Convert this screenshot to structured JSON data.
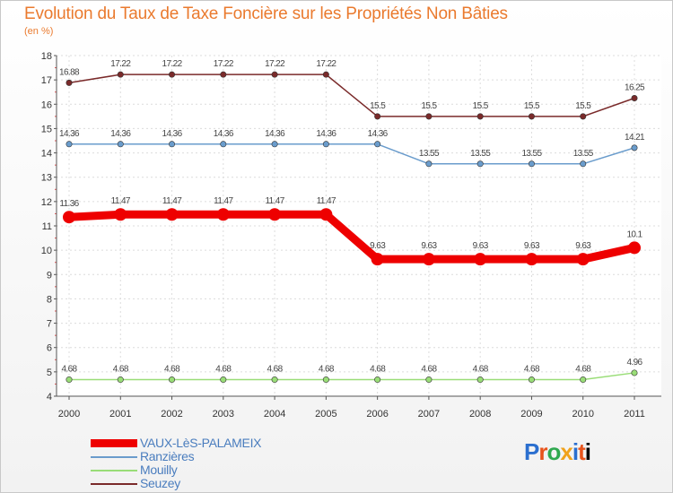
{
  "chart_data": {
    "type": "line",
    "title": "Evolution du Taux de Taxe Foncière sur les Propriétés Non Bâties",
    "ylabel": "(en %)",
    "xlabel": "",
    "ylim": [
      4,
      18
    ],
    "yticks": [
      4,
      5,
      6,
      7,
      8,
      9,
      10,
      11,
      12,
      13,
      14,
      15,
      16,
      17,
      18
    ],
    "categories": [
      "2000",
      "2001",
      "2002",
      "2003",
      "2004",
      "2005",
      "2006",
      "2007",
      "2008",
      "2009",
      "2010",
      "2011"
    ],
    "series": [
      {
        "name": "Seuzey",
        "color": "#7a2a2a",
        "values": [
          16.88,
          17.22,
          17.22,
          17.22,
          17.22,
          17.22,
          15.5,
          15.5,
          15.5,
          15.5,
          15.5,
          16.25
        ],
        "labels": [
          "16.88",
          "17.22",
          "17.22",
          "17.22",
          "17.22",
          "17.22",
          "15.5",
          "15.5",
          "15.5",
          "15.5",
          "15.5",
          "16.25"
        ]
      },
      {
        "name": "Ranzières",
        "color": "#6a9ccc",
        "values": [
          14.36,
          14.36,
          14.36,
          14.36,
          14.36,
          14.36,
          14.36,
          13.55,
          13.55,
          13.55,
          13.55,
          14.21
        ],
        "labels": [
          "14.36",
          "14.36",
          "14.36",
          "14.36",
          "14.36",
          "14.36",
          "14.36",
          "13.55",
          "13.55",
          "13.55",
          "13.55",
          "14.21"
        ]
      },
      {
        "name": "VAUX-LèS-PALAMEIX",
        "color": "#ee0000",
        "values": [
          11.36,
          11.47,
          11.47,
          11.47,
          11.47,
          11.47,
          9.63,
          9.63,
          9.63,
          9.63,
          9.63,
          10.1
        ],
        "labels": [
          "11.36",
          "11.47",
          "11.47",
          "11.47",
          "11.47",
          "11.47",
          "9.63",
          "9.63",
          "9.63",
          "9.63",
          "9.63",
          "10.1"
        ]
      },
      {
        "name": "Mouilly",
        "color": "#99dd77",
        "values": [
          4.68,
          4.68,
          4.68,
          4.68,
          4.68,
          4.68,
          4.68,
          4.68,
          4.68,
          4.68,
          4.68,
          4.96
        ],
        "labels": [
          "4.68",
          "4.68",
          "4.68",
          "4.68",
          "4.68",
          "4.68",
          "4.68",
          "4.68",
          "4.68",
          "4.68",
          "4.68",
          "4.96"
        ]
      }
    ],
    "legend": [
      "VAUX-LèS-PALAMEIX",
      "Ranzières",
      "Mouilly",
      "Seuzey"
    ],
    "legend_colors": [
      "#ee0000",
      "#6a9ccc",
      "#99dd77",
      "#7a2a2a"
    ],
    "grid": true
  },
  "logo": {
    "letters": [
      "P",
      "r",
      "o",
      "x",
      "i",
      "t",
      "i"
    ]
  }
}
